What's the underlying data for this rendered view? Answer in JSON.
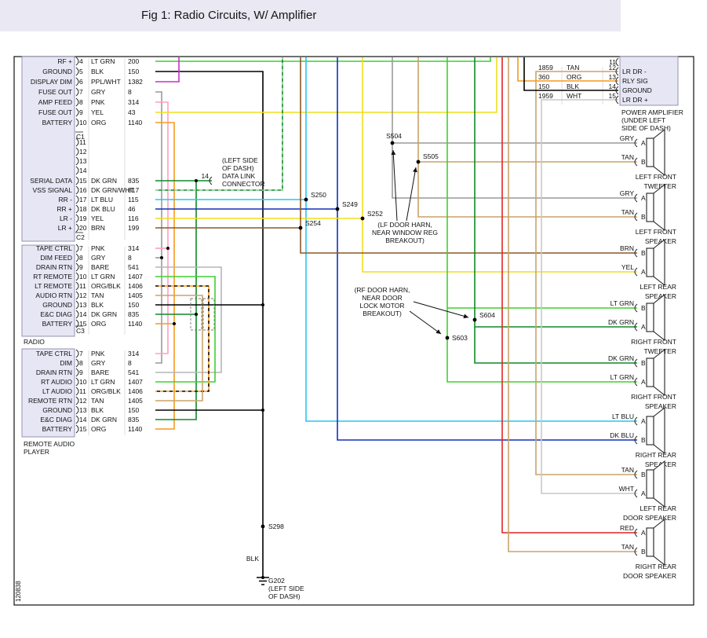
{
  "header": {
    "title": "Fig 1: Radio Circuits, W/ Amplifier"
  },
  "footnote": "120838",
  "wire_colors": {
    "LT GRN": "#3fd12e",
    "DK GRN": "#0e8a28",
    "BLK": "#000000",
    "PPL/WHT": "#c435c4",
    "GRY": "#9a9a9a",
    "PNK": "#ff9fc4",
    "YEL": "#f0dd1e",
    "ORG": "#f59a1f",
    "ORG/BLK": "#f59a1f",
    "TAN": "#c9a36a",
    "BRN": "#8a5a28",
    "LT BLU": "#27c7ee",
    "DK BLU": "#1131b8",
    "BARE": "#b5b5b5",
    "DK GRN/WHT": "#0e8a28",
    "RED": "#e02525",
    "WHT": "#c9c9c9"
  },
  "radio": {
    "name": "RADIO",
    "c1_label": "C1",
    "c2_label": "C2",
    "c3_label": "C3",
    "main_rows": [
      {
        "signal": "RF +",
        "pin": "4",
        "color": "LT GRN",
        "circuit": "200"
      },
      {
        "signal": "GROUND",
        "pin": "5",
        "color": "BLK",
        "circuit": "150"
      },
      {
        "signal": "DISPLAY DIM",
        "pin": "6",
        "color": "PPL/WHT",
        "circuit": "1382"
      },
      {
        "signal": "FUSE OUT",
        "pin": "7",
        "color": "GRY",
        "circuit": "8"
      },
      {
        "signal": "AMP FEED",
        "pin": "8",
        "color": "PNK",
        "circuit": "314"
      },
      {
        "signal": "FUSE OUT",
        "pin": "9",
        "color": "YEL",
        "circuit": "43"
      },
      {
        "signal": "BATTERY",
        "pin": "10",
        "color": "ORG",
        "circuit": "1140"
      }
    ],
    "empty_pins": [
      "11",
      "12",
      "13",
      "14"
    ],
    "c2_rows": [
      {
        "signal": "SERIAL DATA",
        "pin": "15",
        "color": "DK GRN",
        "circuit": "835"
      },
      {
        "signal": "VSS SIGNAL",
        "pin": "16",
        "color": "DK GRN/WHT",
        "circuit": "817"
      },
      {
        "signal": "RR -",
        "pin": "17",
        "color": "LT BLU",
        "circuit": "115"
      },
      {
        "signal": "RR +",
        "pin": "18",
        "color": "DK BLU",
        "circuit": "46"
      },
      {
        "signal": "LR -",
        "pin": "19",
        "color": "YEL",
        "circuit": "116"
      },
      {
        "signal": "LR +",
        "pin": "20",
        "color": "BRN",
        "circuit": "199"
      }
    ],
    "c3_rows": [
      {
        "signal": "TAPE CTRL",
        "pin": "7",
        "color": "PNK",
        "circuit": "314"
      },
      {
        "signal": "DIM FEED",
        "pin": "8",
        "color": "GRY",
        "circuit": "8"
      },
      {
        "signal": "DRAIN RTN",
        "pin": "9",
        "color": "BARE",
        "circuit": "541"
      },
      {
        "signal": "RT REMOTE",
        "pin": "10",
        "color": "LT GRN",
        "circuit": "1407"
      },
      {
        "signal": "LT REMOTE",
        "pin": "11",
        "color": "ORG/BLK",
        "circuit": "1406"
      },
      {
        "signal": "AUDIO RTN",
        "pin": "12",
        "color": "TAN",
        "circuit": "1405"
      },
      {
        "signal": "GROUND",
        "pin": "13",
        "color": "BLK",
        "circuit": "150"
      },
      {
        "signal": "E&C DIAG",
        "pin": "14",
        "color": "DK GRN",
        "circuit": "835"
      },
      {
        "signal": "BATTERY",
        "pin": "15",
        "color": "ORG",
        "circuit": "1140"
      }
    ]
  },
  "remote": {
    "name": [
      "REMOTE AUDIO",
      "PLAYER"
    ],
    "rows": [
      {
        "signal": "TAPE CTRL",
        "pin": "7",
        "color": "PNK",
        "circuit": "314"
      },
      {
        "signal": "DIM",
        "pin": "8",
        "color": "GRY",
        "circuit": "8"
      },
      {
        "signal": "DRAIN RTN",
        "pin": "9",
        "color": "BARE",
        "circuit": "541"
      },
      {
        "signal": "RT AUDIO",
        "pin": "10",
        "color": "LT GRN",
        "circuit": "1407"
      },
      {
        "signal": "LT AUDIO",
        "pin": "11",
        "color": "ORG/BLK",
        "circuit": "1406"
      },
      {
        "signal": "REMOTE RTN",
        "pin": "12",
        "color": "TAN",
        "circuit": "1405"
      },
      {
        "signal": "GROUND",
        "pin": "13",
        "color": "BLK",
        "circuit": "150"
      },
      {
        "signal": "E&C DIAG",
        "pin": "14",
        "color": "DK GRN",
        "circuit": "835"
      },
      {
        "signal": "BATTERY",
        "pin": "15",
        "color": "ORG",
        "circuit": "1140"
      }
    ]
  },
  "amplifier": {
    "name": [
      "POWER AMPLIFIER",
      "(UNDER LEFT",
      "SIDE OF DASH)"
    ],
    "empty_pin": "11",
    "rows": [
      {
        "circuit": "1859",
        "color": "TAN",
        "pin": "12",
        "signal": "LR DR -"
      },
      {
        "circuit": "360",
        "color": "ORG",
        "pin": "13",
        "signal": "RLY SIG"
      },
      {
        "circuit": "150",
        "color": "BLK",
        "pin": "14",
        "signal": "GROUND"
      },
      {
        "circuit": "1959",
        "color": "WHT",
        "pin": "15",
        "signal": "LR DR +"
      }
    ]
  },
  "speakers": [
    {
      "label": [
        "LEFT FRONT",
        "TWEETER"
      ],
      "terminals": [
        {
          "color": "GRY",
          "letter": "A"
        },
        {
          "color": "TAN",
          "letter": "B"
        }
      ]
    },
    {
      "label": [
        "LEFT FRONT",
        "SPEAKER"
      ],
      "terminals": [
        {
          "color": "GRY",
          "letter": "A"
        },
        {
          "color": "TAN",
          "letter": "B"
        }
      ]
    },
    {
      "label": [
        "LEFT REAR",
        "SPEAKER"
      ],
      "terminals": [
        {
          "color": "BRN",
          "letter": "B"
        },
        {
          "color": "YEL",
          "letter": "A"
        }
      ]
    },
    {
      "label": [
        "RIGHT FRONT",
        "TWEETER"
      ],
      "terminals": [
        {
          "color": "LT GRN",
          "letter": "B"
        },
        {
          "color": "DK GRN",
          "letter": "A"
        }
      ]
    },
    {
      "label": [
        "RIGHT FRONT",
        "SPEAKER"
      ],
      "terminals": [
        {
          "color": "DK GRN",
          "letter": "B"
        },
        {
          "color": "LT GRN",
          "letter": "A"
        }
      ]
    },
    {
      "label": [
        "RIGHT REAR",
        "SPEAKER"
      ],
      "terminals": [
        {
          "color": "LT BLU",
          "letter": "A"
        },
        {
          "color": "DK BLU",
          "letter": "B"
        }
      ]
    },
    {
      "label": [
        "LEFT REAR",
        "DOOR SPEAKER"
      ],
      "terminals": [
        {
          "color": "TAN",
          "letter": "B"
        },
        {
          "color": "WHT",
          "letter": "A"
        }
      ]
    },
    {
      "label": [
        "RIGHT REAR",
        "DOOR SPEAKER"
      ],
      "terminals": [
        {
          "color": "RED",
          "letter": "A"
        },
        {
          "color": "TAN",
          "letter": "B"
        }
      ]
    }
  ],
  "splices": {
    "s250": "S250",
    "s249": "S249",
    "s252": "S252",
    "s254": "S254",
    "s504": "S504",
    "s505": "S505",
    "s603": "S603",
    "s604": "S604",
    "s298": "S298"
  },
  "data_link": {
    "pin": "14",
    "note": [
      "(LEFT SIDE",
      "OF DASH)",
      "DATA LINK",
      "CONNECTOR"
    ]
  },
  "notes": {
    "lf_door": [
      "(LF DOOR HARN,",
      "NEAR WINDOW REG",
      "BREAKOUT)"
    ],
    "rf_door": [
      "(RF DOOR HARN,",
      "NEAR DOOR",
      "LOCK MOTOR",
      "BREAKOUT)"
    ]
  },
  "ground": {
    "name": "G202",
    "wire_label": "BLK",
    "note": [
      "(LEFT SIDE",
      "OF DASH)"
    ]
  }
}
